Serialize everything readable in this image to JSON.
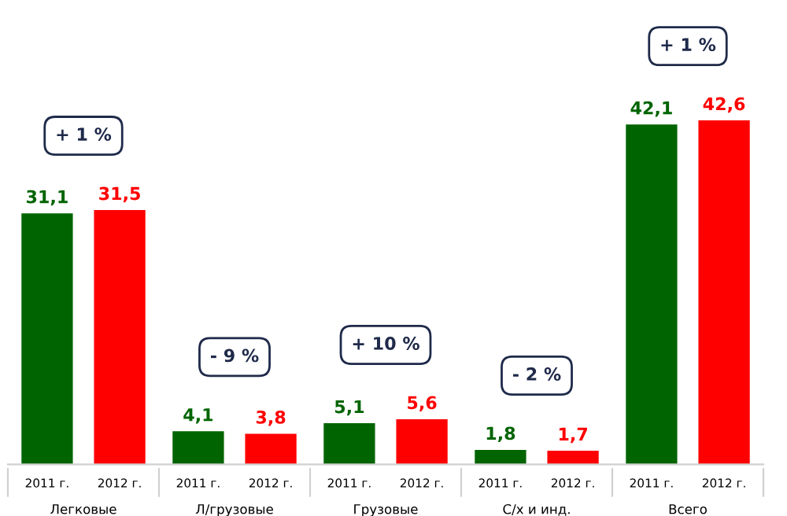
{
  "chart_data": {
    "type": "bar",
    "categories": [
      "Легковые",
      "Л/грузовые",
      "Грузовые",
      "С/х и инд.",
      "Всего"
    ],
    "series": [
      {
        "name": "2011 г.",
        "color": "#006400",
        "values": [
          31.1,
          4.1,
          5.1,
          1.8,
          42.1
        ],
        "value_labels": [
          "31,1",
          "4,1",
          "5,1",
          "1,8",
          "42,1"
        ]
      },
      {
        "name": "2012 г.",
        "color": "#ff0000",
        "values": [
          31.5,
          3.8,
          5.6,
          1.7,
          42.6
        ],
        "value_labels": [
          "31,5",
          "3,8",
          "5,6",
          "1,7",
          "42,6"
        ]
      }
    ],
    "annotations": [
      "+ 1 %",
      "- 9 %",
      "+ 10 %",
      "- 2 %",
      "+ 1 %"
    ]
  }
}
